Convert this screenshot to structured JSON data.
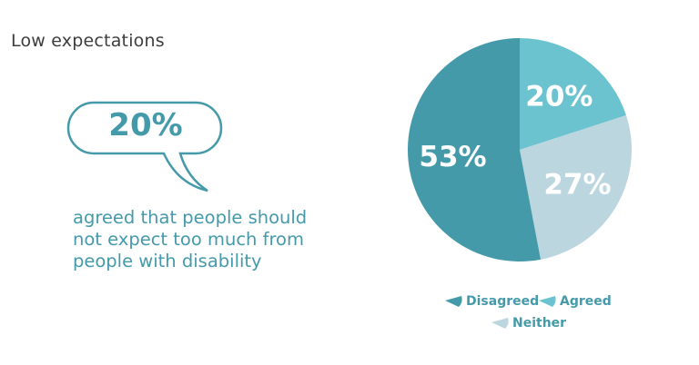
{
  "title": "Low expectations",
  "callout": {
    "value": "20%",
    "description": "agreed that people should not expect too much from people with disability"
  },
  "chart_data": {
    "type": "pie",
    "start": "top",
    "direction": "clockwise",
    "slices": [
      {
        "name": "Agreed",
        "value": 20,
        "label": "20%",
        "color": "#6cc3d0"
      },
      {
        "name": "Neither",
        "value": 27,
        "label": "27%",
        "color": "#bcd6df"
      },
      {
        "name": "Disagreed",
        "value": 53,
        "label": "53%",
        "color": "#459aaa"
      }
    ],
    "legend": [
      "Disagreed",
      "Agreed",
      "Neither"
    ],
    "legend_placement": "bottom"
  }
}
